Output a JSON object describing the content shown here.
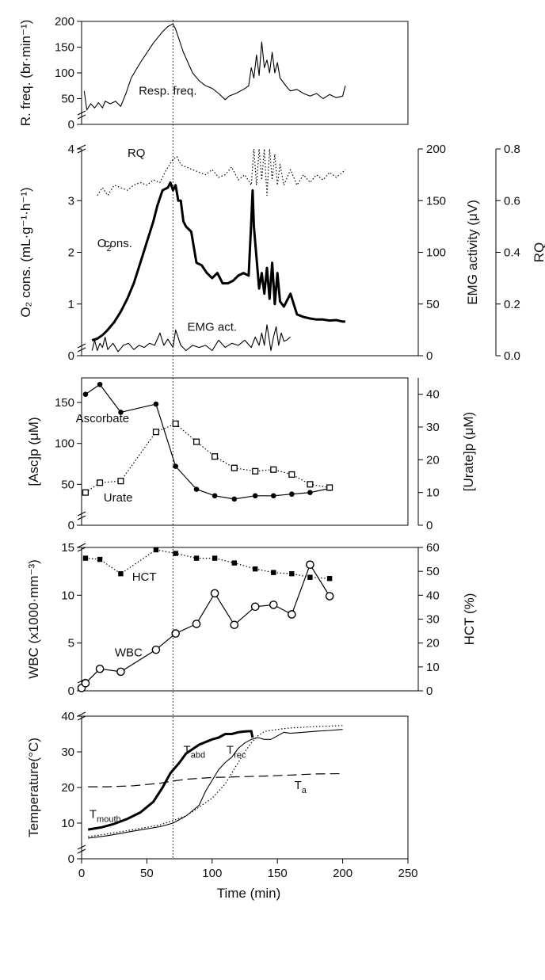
{
  "chart_data": [
    {
      "type": "line",
      "panel": "resp",
      "ylabel": "R. freq. (br·min⁻¹)",
      "ylim": [
        0,
        200
      ],
      "yticks": [
        0,
        50,
        100,
        150,
        200
      ],
      "annotations": [
        {
          "text": "Resp. freq."
        }
      ],
      "series": [
        {
          "name": "Resp. freq.",
          "style": "thin",
          "x": [
            2,
            4,
            7,
            10,
            13,
            16,
            18,
            22,
            26,
            30,
            34,
            38,
            45,
            55,
            62,
            66,
            70,
            72,
            78,
            85,
            90,
            95,
            100,
            105,
            110,
            113,
            118,
            124,
            128,
            130,
            132,
            134,
            136,
            138,
            140,
            142,
            144,
            146,
            148,
            150,
            152,
            155,
            158,
            160,
            165,
            170,
            175,
            180,
            185,
            190,
            195,
            200,
            202
          ],
          "y": [
            65,
            28,
            40,
            32,
            42,
            32,
            45,
            40,
            45,
            35,
            60,
            90,
            120,
            158,
            180,
            190,
            195,
            185,
            140,
            100,
            85,
            75,
            70,
            60,
            48,
            55,
            60,
            68,
            75,
            110,
            90,
            135,
            95,
            160,
            110,
            125,
            100,
            140,
            100,
            120,
            90,
            80,
            70,
            65,
            68,
            60,
            55,
            60,
            50,
            58,
            52,
            55,
            75
          ]
        }
      ]
    },
    {
      "type": "line",
      "panel": "o2",
      "ylabel": "O₂ cons. (mL·g⁻¹·h⁻¹)",
      "y2label": "EMG activity (μV)",
      "y3label": "RQ",
      "ylim": [
        0,
        4
      ],
      "yticks": [
        0,
        1,
        2,
        3,
        4
      ],
      "y2lim": [
        0,
        200
      ],
      "y2ticks": [
        0,
        50,
        100,
        150,
        200
      ],
      "y3lim": [
        0,
        0.8
      ],
      "y3ticks": [
        "0.0",
        "0.2",
        "0.4",
        "0.6",
        "0.8"
      ],
      "annotations": [
        {
          "text": "RQ"
        },
        {
          "text": "O₂ cons."
        },
        {
          "text": "EMG act."
        }
      ],
      "series": [
        {
          "name": "O₂ cons.",
          "style": "thick",
          "axis": "left",
          "x": [
            8,
            12,
            16,
            20,
            25,
            30,
            35,
            40,
            45,
            50,
            55,
            58,
            62,
            66,
            68,
            70,
            72,
            74,
            76,
            78,
            80,
            84,
            88,
            92,
            96,
            100,
            104,
            108,
            112,
            116,
            120,
            124,
            128,
            130,
            131,
            132,
            134,
            136,
            138,
            140,
            142,
            144,
            146,
            148,
            150,
            152,
            155,
            160,
            165,
            170,
            175,
            180,
            185,
            190,
            195,
            200,
            202
          ],
          "y": [
            0.3,
            0.33,
            0.4,
            0.5,
            0.65,
            0.85,
            1.1,
            1.4,
            1.8,
            2.2,
            2.6,
            2.9,
            3.2,
            3.25,
            3.35,
            3.2,
            3.3,
            3.0,
            3.0,
            2.6,
            2.5,
            2.4,
            1.8,
            1.75,
            1.6,
            1.5,
            1.6,
            1.4,
            1.4,
            1.45,
            1.55,
            1.6,
            1.55,
            2.6,
            3.2,
            2.5,
            1.9,
            1.3,
            1.6,
            1.2,
            1.7,
            1.1,
            1.8,
            1.0,
            1.6,
            1.05,
            0.95,
            1.2,
            0.8,
            0.75,
            0.72,
            0.7,
            0.7,
            0.68,
            0.69,
            0.66,
            0.66
          ]
        },
        {
          "name": "EMG act.",
          "style": "thin",
          "axis": "right",
          "x": [
            8,
            10,
            12,
            14,
            16,
            18,
            20,
            24,
            28,
            32,
            36,
            40,
            44,
            48,
            52,
            56,
            60,
            63,
            66,
            68,
            70,
            72,
            76,
            80,
            85,
            90,
            95,
            100,
            105,
            110,
            115,
            120,
            125,
            130,
            133,
            136,
            138,
            140,
            142,
            145,
            147,
            149,
            151,
            153,
            155,
            157,
            160
          ],
          "y": [
            5,
            15,
            5,
            12,
            8,
            18,
            6,
            12,
            4,
            10,
            12,
            6,
            10,
            8,
            12,
            10,
            22,
            10,
            16,
            12,
            8,
            25,
            10,
            5,
            10,
            8,
            10,
            5,
            15,
            8,
            12,
            10,
            15,
            8,
            18,
            10,
            22,
            10,
            30,
            5,
            18,
            28,
            10,
            22,
            14,
            15,
            18
          ]
        },
        {
          "name": "RQ",
          "style": "dotted",
          "axis": "right2",
          "x": [
            12,
            16,
            20,
            25,
            30,
            35,
            40,
            45,
            50,
            55,
            60,
            65,
            70,
            73,
            76,
            80,
            85,
            90,
            95,
            100,
            105,
            110,
            115,
            120,
            125,
            130,
            132,
            134,
            136,
            138,
            140,
            142,
            144,
            146,
            148,
            150,
            152,
            155,
            160,
            165,
            170,
            175,
            180,
            185,
            190,
            195,
            200,
            202
          ],
          "y": [
            0.62,
            0.65,
            0.62,
            0.66,
            0.65,
            0.64,
            0.66,
            0.67,
            0.66,
            0.68,
            0.67,
            0.72,
            0.76,
            0.77,
            0.74,
            0.73,
            0.72,
            0.71,
            0.7,
            0.72,
            0.69,
            0.7,
            0.73,
            0.68,
            0.7,
            0.66,
            0.8,
            0.66,
            0.8,
            0.68,
            0.8,
            0.62,
            0.8,
            0.68,
            0.78,
            0.66,
            0.74,
            0.66,
            0.72,
            0.66,
            0.7,
            0.67,
            0.7,
            0.68,
            0.71,
            0.69,
            0.71,
            0.72
          ]
        }
      ]
    },
    {
      "type": "line",
      "panel": "asc",
      "ylabel": "[Asc]p  (μM)",
      "y2label": "[Urate]p  (μM)",
      "ylim": [
        0,
        180
      ],
      "yticks": [
        0,
        50,
        100,
        150
      ],
      "y2lim": [
        0,
        45
      ],
      "y2ticks": [
        0,
        10,
        20,
        30,
        40
      ],
      "annotations": [
        {
          "text": "Ascorbate"
        },
        {
          "text": "Urate"
        }
      ],
      "series": [
        {
          "name": "Ascorbate",
          "style": "solid",
          "marker": "filled-circle",
          "axis": "left",
          "x": [
            3,
            14,
            30,
            57,
            72,
            88,
            102,
            117,
            133,
            147,
            161,
            175,
            190
          ],
          "y": [
            160,
            172,
            138,
            148,
            72,
            44,
            36,
            32,
            36,
            36,
            38,
            40,
            45
          ]
        },
        {
          "name": "Urate",
          "style": "dotted",
          "marker": "open-square",
          "axis": "right",
          "x": [
            3,
            14,
            30,
            57,
            72,
            88,
            102,
            117,
            133,
            147,
            161,
            175,
            190
          ],
          "y": [
            10,
            13,
            13.5,
            28.5,
            31,
            25.5,
            21,
            17.5,
            16.5,
            17,
            15.5,
            12.5,
            11.5
          ]
        }
      ]
    },
    {
      "type": "line",
      "panel": "wbc",
      "ylabel": "WBC (x1000·mm⁻³)",
      "y2label": "HCT (%)",
      "ylim": [
        0,
        15
      ],
      "yticks": [
        0,
        5,
        10,
        15
      ],
      "y2lim": [
        0,
        60
      ],
      "y2ticks": [
        0,
        10,
        20,
        30,
        40,
        50,
        60
      ],
      "annotations": [
        {
          "text": "HCT"
        },
        {
          "text": "WBC"
        }
      ],
      "series": [
        {
          "name": "HCT",
          "style": "dotted",
          "marker": "filled-square",
          "axis": "right",
          "x": [
            3,
            14,
            30,
            57,
            72,
            88,
            102,
            117,
            133,
            147,
            161,
            175,
            190
          ],
          "y": [
            55.5,
            55,
            49,
            59,
            57.5,
            55.5,
            55.5,
            53.5,
            51,
            49.5,
            49,
            47.5,
            47
          ]
        },
        {
          "name": "WBC",
          "style": "solid",
          "marker": "open-circle",
          "axis": "left",
          "x": [
            0,
            3,
            14,
            30,
            57,
            72,
            88,
            102,
            117,
            133,
            147,
            161,
            175,
            190
          ],
          "y": [
            0.3,
            0.8,
            2.3,
            2.0,
            4.3,
            6.0,
            7.0,
            10.2,
            6.9,
            8.8,
            9.0,
            8.0,
            13.2,
            9.9
          ]
        }
      ]
    },
    {
      "type": "line",
      "panel": "temp",
      "ylabel": "Temperature(°C)",
      "xlabel": "Time (min)",
      "xlim": [
        0,
        250
      ],
      "xticks": [
        0,
        50,
        100,
        150,
        200,
        250
      ],
      "ylim": [
        0,
        40
      ],
      "yticks": [
        0,
        10,
        20,
        30,
        40
      ],
      "annotations": [
        {
          "text": "T",
          "sub": "mouth"
        },
        {
          "text": "T",
          "sub": "abd"
        },
        {
          "text": "T",
          "sub": "rec"
        },
        {
          "text": "T",
          "sub": "a"
        }
      ],
      "series": [
        {
          "name": "Tmouth",
          "style": "thick",
          "x": [
            5,
            15,
            25,
            35,
            45,
            55,
            62,
            68,
            75,
            80,
            90,
            100,
            105,
            110,
            115,
            120,
            125,
            130,
            131
          ],
          "y": [
            8.2,
            8.8,
            9.8,
            11.2,
            13,
            16,
            20,
            24,
            27,
            29.5,
            32,
            33.5,
            34,
            35,
            35,
            35.5,
            35.7,
            35.8,
            34
          ]
        },
        {
          "name": "Tabd",
          "style": "thin",
          "x": [
            5,
            20,
            40,
            60,
            70,
            80,
            90,
            95,
            100,
            105,
            110,
            115,
            120,
            125,
            130,
            135,
            140,
            145,
            150,
            155,
            160,
            170,
            180,
            190,
            200
          ],
          "y": [
            5.8,
            6.5,
            7.8,
            9.0,
            10,
            12,
            15,
            19,
            22,
            25,
            27,
            28.5,
            31,
            32.5,
            33.5,
            34,
            33.5,
            33.5,
            34.5,
            35.5,
            35.2,
            35.5,
            35.8,
            36,
            36.3
          ]
        },
        {
          "name": "Trec",
          "style": "dotted",
          "x": [
            5,
            20,
            40,
            60,
            80,
            90,
            100,
            110,
            115,
            120,
            125,
            130,
            135,
            140,
            150,
            160,
            170,
            180,
            190,
            200
          ],
          "y": [
            6.2,
            7,
            8.2,
            9.5,
            12,
            14.5,
            17,
            21,
            24,
            27,
            30,
            32.5,
            34.5,
            35.7,
            36.3,
            36.7,
            36.9,
            37.1,
            37.2,
            37.4
          ]
        },
        {
          "name": "Ta",
          "style": "dashed",
          "x": [
            5,
            20,
            40,
            60,
            70,
            80,
            100,
            120,
            140,
            160,
            180,
            200
          ],
          "y": [
            20.2,
            20.2,
            20.5,
            21.2,
            21.8,
            22.3,
            22.8,
            23.0,
            23.2,
            23.5,
            23.8,
            23.9
          ]
        }
      ]
    }
  ]
}
